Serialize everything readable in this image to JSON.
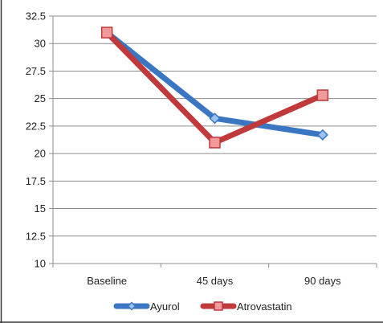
{
  "chart_data": {
    "type": "line",
    "title": "",
    "xlabel": "",
    "ylabel": "",
    "categories": [
      "Baseline",
      "45 days",
      "90 days"
    ],
    "ylim": [
      10,
      32.5
    ],
    "yticks": [
      "10",
      "12.5",
      "15",
      "17.5",
      "20",
      "22.5",
      "25",
      "27.5",
      "30",
      "32.5"
    ],
    "grid": true,
    "legend_position": "bottom",
    "series": [
      {
        "name": "Ayurol",
        "values": [
          31.0,
          23.2,
          21.7
        ],
        "color": "#3a76c2",
        "marker": "diamond"
      },
      {
        "name": "Atrovastatin",
        "values": [
          31.0,
          21.0,
          25.3
        ],
        "color": "#c0393b",
        "marker": "square"
      }
    ]
  }
}
